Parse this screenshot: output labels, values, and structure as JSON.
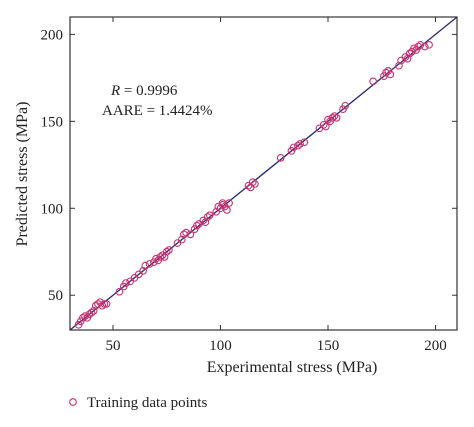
{
  "chart_data": {
    "type": "scatter",
    "xlabel": "Experimental stress (MPa)",
    "ylabel": "Predicted stress (MPa)",
    "xlim": [
      30,
      210
    ],
    "ylim": [
      30,
      210
    ],
    "xticks": [
      50,
      100,
      150,
      200
    ],
    "yticks": [
      50,
      100,
      150,
      200
    ],
    "grid": false,
    "legend_position": "bottom-left",
    "annotations": {
      "r_label": "R",
      "r_value": " = 0.9996",
      "aare": "AARE = 1.4424%"
    },
    "colors": {
      "points": "#c8326e",
      "fit_line": "#2b2f7a",
      "axes": "#333333"
    },
    "fit_line": {
      "x": [
        30,
        210
      ],
      "y": [
        30,
        210
      ]
    },
    "series": [
      {
        "name": "Training data points",
        "points": [
          [
            34,
            33
          ],
          [
            35,
            35
          ],
          [
            36,
            37
          ],
          [
            37,
            38
          ],
          [
            38,
            37
          ],
          [
            39,
            39
          ],
          [
            40,
            40
          ],
          [
            41,
            41
          ],
          [
            42,
            44
          ],
          [
            43,
            45
          ],
          [
            44,
            46
          ],
          [
            45,
            44
          ],
          [
            46,
            45
          ],
          [
            47,
            45
          ],
          [
            53,
            52
          ],
          [
            55,
            55
          ],
          [
            56,
            57
          ],
          [
            58,
            58
          ],
          [
            60,
            60
          ],
          [
            62,
            62
          ],
          [
            64,
            64
          ],
          [
            65,
            67
          ],
          [
            67,
            68
          ],
          [
            69,
            69
          ],
          [
            70,
            71
          ],
          [
            71,
            70
          ],
          [
            72,
            72
          ],
          [
            73,
            73
          ],
          [
            74,
            72
          ],
          [
            75,
            75
          ],
          [
            76,
            76
          ],
          [
            80,
            80
          ],
          [
            82,
            82
          ],
          [
            83,
            85
          ],
          [
            84,
            86
          ],
          [
            86,
            85
          ],
          [
            88,
            88
          ],
          [
            89,
            90
          ],
          [
            90,
            91
          ],
          [
            92,
            93
          ],
          [
            93,
            92
          ],
          [
            94,
            95
          ],
          [
            95,
            96
          ],
          [
            98,
            98
          ],
          [
            99,
            101
          ],
          [
            100,
            100
          ],
          [
            101,
            102
          ],
          [
            101,
            103
          ],
          [
            102,
            101
          ],
          [
            103,
            99
          ],
          [
            104,
            103
          ],
          [
            113,
            113
          ],
          [
            114,
            112
          ],
          [
            115,
            115
          ],
          [
            116,
            114
          ],
          [
            128,
            129
          ],
          [
            133,
            133
          ],
          [
            134,
            135
          ],
          [
            136,
            136
          ],
          [
            137,
            137
          ],
          [
            139,
            138
          ],
          [
            146,
            146
          ],
          [
            148,
            148
          ],
          [
            149,
            147
          ],
          [
            150,
            151
          ],
          [
            151,
            150
          ],
          [
            152,
            152
          ],
          [
            153,
            153
          ],
          [
            154,
            152
          ],
          [
            157,
            157
          ],
          [
            158,
            159
          ],
          [
            171,
            173
          ],
          [
            176,
            176
          ],
          [
            177,
            178
          ],
          [
            178,
            179
          ],
          [
            179,
            177
          ],
          [
            183,
            182
          ],
          [
            184,
            185
          ],
          [
            186,
            187
          ],
          [
            187,
            186
          ],
          [
            188,
            189
          ],
          [
            189,
            190
          ],
          [
            190,
            192
          ],
          [
            191,
            191
          ],
          [
            192,
            193
          ],
          [
            193,
            194
          ],
          [
            195,
            193
          ],
          [
            197,
            194
          ]
        ]
      }
    ]
  }
}
